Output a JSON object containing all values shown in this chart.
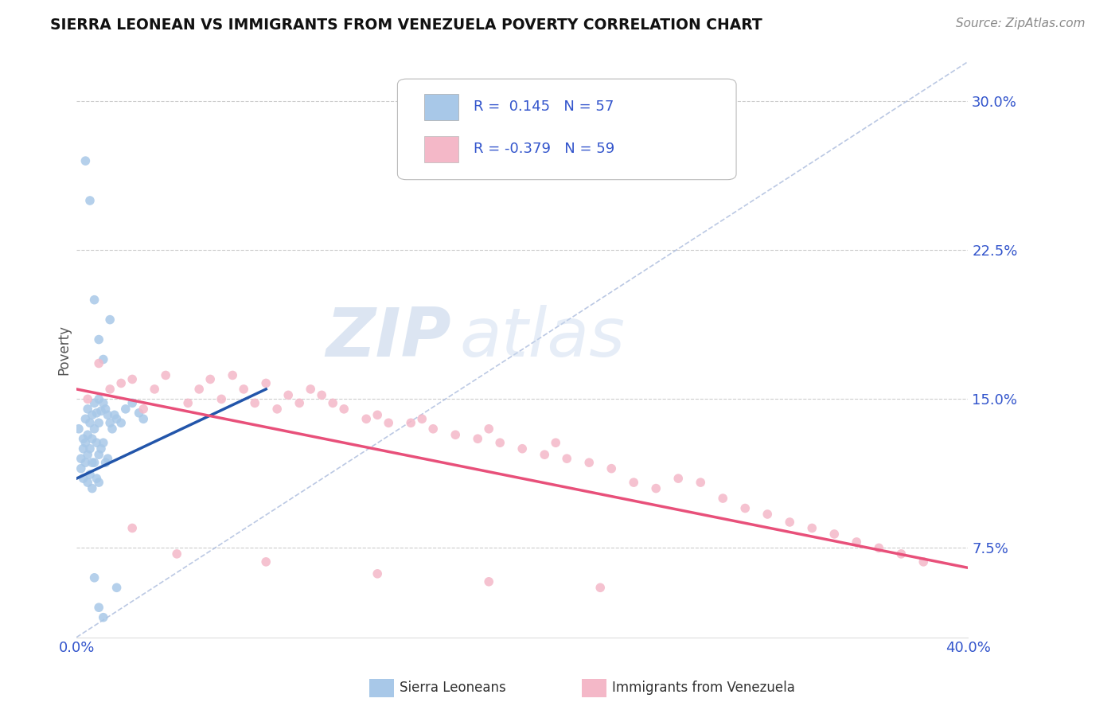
{
  "title": "SIERRA LEONEAN VS IMMIGRANTS FROM VENEZUELA POVERTY CORRELATION CHART",
  "source": "Source: ZipAtlas.com",
  "ylabel_ticks": [
    7.5,
    15.0,
    22.5,
    30.0
  ],
  "ylabel_label": "Poverty",
  "xmin": 0.0,
  "xmax": 0.4,
  "ymin": 0.03,
  "ymax": 0.32,
  "blue_R": 0.145,
  "blue_N": 57,
  "pink_R": -0.379,
  "pink_N": 59,
  "blue_color": "#a8c8e8",
  "pink_color": "#f4b8c8",
  "blue_line_color": "#2255aa",
  "pink_line_color": "#e8507a",
  "legend_label_blue": "Sierra Leoneans",
  "legend_label_pink": "Immigrants from Venezuela",
  "background_color": "#ffffff",
  "tick_color": "#3355cc",
  "title_color": "#111111",
  "blue_scatter_x": [
    0.001,
    0.002,
    0.002,
    0.003,
    0.003,
    0.003,
    0.004,
    0.004,
    0.004,
    0.005,
    0.005,
    0.005,
    0.005,
    0.006,
    0.006,
    0.006,
    0.007,
    0.007,
    0.007,
    0.007,
    0.008,
    0.008,
    0.008,
    0.009,
    0.009,
    0.009,
    0.01,
    0.01,
    0.01,
    0.01,
    0.011,
    0.011,
    0.012,
    0.012,
    0.013,
    0.013,
    0.014,
    0.014,
    0.015,
    0.016,
    0.017,
    0.018,
    0.02,
    0.022,
    0.025,
    0.028,
    0.03,
    0.004,
    0.006,
    0.008,
    0.01,
    0.012,
    0.015,
    0.008,
    0.01,
    0.012,
    0.018
  ],
  "blue_scatter_y": [
    0.135,
    0.12,
    0.115,
    0.13,
    0.125,
    0.11,
    0.14,
    0.128,
    0.118,
    0.145,
    0.132,
    0.122,
    0.108,
    0.138,
    0.125,
    0.112,
    0.142,
    0.13,
    0.118,
    0.105,
    0.148,
    0.135,
    0.118,
    0.143,
    0.128,
    0.11,
    0.15,
    0.138,
    0.122,
    0.108,
    0.144,
    0.125,
    0.148,
    0.128,
    0.145,
    0.118,
    0.142,
    0.12,
    0.138,
    0.135,
    0.142,
    0.14,
    0.138,
    0.145,
    0.148,
    0.143,
    0.14,
    0.27,
    0.25,
    0.2,
    0.18,
    0.17,
    0.19,
    0.06,
    0.045,
    0.04,
    0.055
  ],
  "pink_scatter_x": [
    0.005,
    0.01,
    0.015,
    0.02,
    0.025,
    0.03,
    0.035,
    0.04,
    0.05,
    0.055,
    0.06,
    0.065,
    0.07,
    0.075,
    0.08,
    0.085,
    0.09,
    0.095,
    0.1,
    0.105,
    0.11,
    0.115,
    0.12,
    0.13,
    0.135,
    0.14,
    0.15,
    0.155,
    0.16,
    0.17,
    0.18,
    0.185,
    0.19,
    0.2,
    0.21,
    0.215,
    0.22,
    0.23,
    0.24,
    0.25,
    0.26,
    0.27,
    0.28,
    0.29,
    0.3,
    0.31,
    0.32,
    0.33,
    0.34,
    0.35,
    0.36,
    0.37,
    0.38,
    0.025,
    0.045,
    0.085,
    0.135,
    0.185,
    0.235
  ],
  "pink_scatter_y": [
    0.15,
    0.168,
    0.155,
    0.158,
    0.16,
    0.145,
    0.155,
    0.162,
    0.148,
    0.155,
    0.16,
    0.15,
    0.162,
    0.155,
    0.148,
    0.158,
    0.145,
    0.152,
    0.148,
    0.155,
    0.152,
    0.148,
    0.145,
    0.14,
    0.142,
    0.138,
    0.138,
    0.14,
    0.135,
    0.132,
    0.13,
    0.135,
    0.128,
    0.125,
    0.122,
    0.128,
    0.12,
    0.118,
    0.115,
    0.108,
    0.105,
    0.11,
    0.108,
    0.1,
    0.095,
    0.092,
    0.088,
    0.085,
    0.082,
    0.078,
    0.075,
    0.072,
    0.068,
    0.085,
    0.072,
    0.068,
    0.062,
    0.058,
    0.055
  ],
  "blue_line_x": [
    0.0,
    0.085
  ],
  "blue_line_y": [
    0.11,
    0.155
  ],
  "pink_line_x": [
    0.0,
    0.4
  ],
  "pink_line_y": [
    0.155,
    0.065
  ],
  "dash_line_x": [
    0.0,
    0.4
  ],
  "dash_line_y": [
    0.03,
    0.32
  ]
}
